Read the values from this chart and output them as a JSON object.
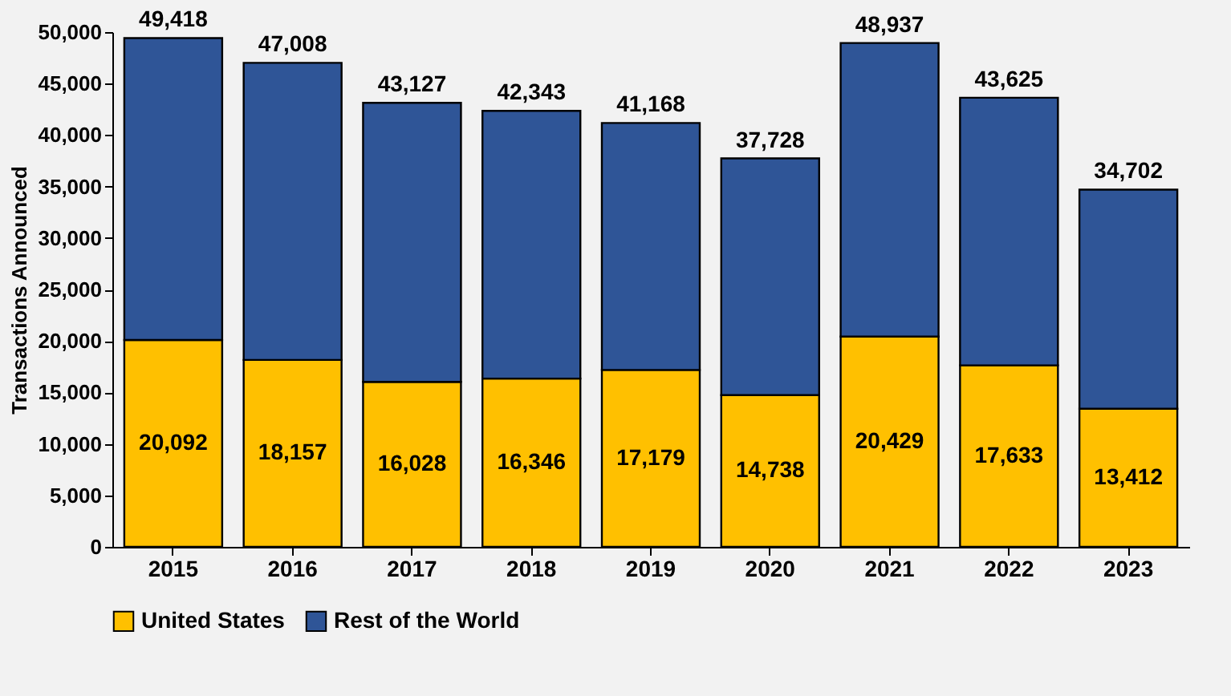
{
  "chart_data": {
    "type": "bar",
    "stacked": true,
    "ylabel": "Transactions Announced",
    "categories": [
      "2015",
      "2016",
      "2017",
      "2018",
      "2019",
      "2020",
      "2021",
      "2022",
      "2023"
    ],
    "series": [
      {
        "name": "United States",
        "color": "#ffc000",
        "values": [
          20092,
          18157,
          16028,
          16346,
          17179,
          14738,
          20429,
          17633,
          13412
        ],
        "value_labels": [
          "20,092",
          "18,157",
          "16,028",
          "16,346",
          "17,179",
          "14,738",
          "20,429",
          "17,633",
          "13,412"
        ]
      },
      {
        "name": "Rest of the World",
        "color": "#2f5597",
        "values": [
          29326,
          28851,
          27099,
          25997,
          23989,
          22990,
          28508,
          25992,
          21290
        ]
      }
    ],
    "totals": [
      "49,418",
      "47,008",
      "43,127",
      "42,343",
      "41,168",
      "37,728",
      "48,937",
      "43,625",
      "34,702"
    ],
    "ylim": [
      0,
      50000
    ],
    "yticks": [
      0,
      {
        "value": 5000,
        "label": "5,000"
      },
      {
        "value": 10000,
        "label": "10,000"
      },
      {
        "value": 15000,
        "label": "15,000"
      },
      {
        "value": 20000,
        "label": "20,000"
      },
      {
        "value": 25000,
        "label": "25,000"
      },
      {
        "value": 30000,
        "label": "30,000"
      },
      {
        "value": 35000,
        "label": "35,000"
      },
      {
        "value": 40000,
        "label": "40,000"
      },
      {
        "value": 45000,
        "label": "45,000"
      },
      {
        "value": 50000,
        "label": "50,000"
      }
    ],
    "grid": false,
    "legend": "bottom"
  }
}
